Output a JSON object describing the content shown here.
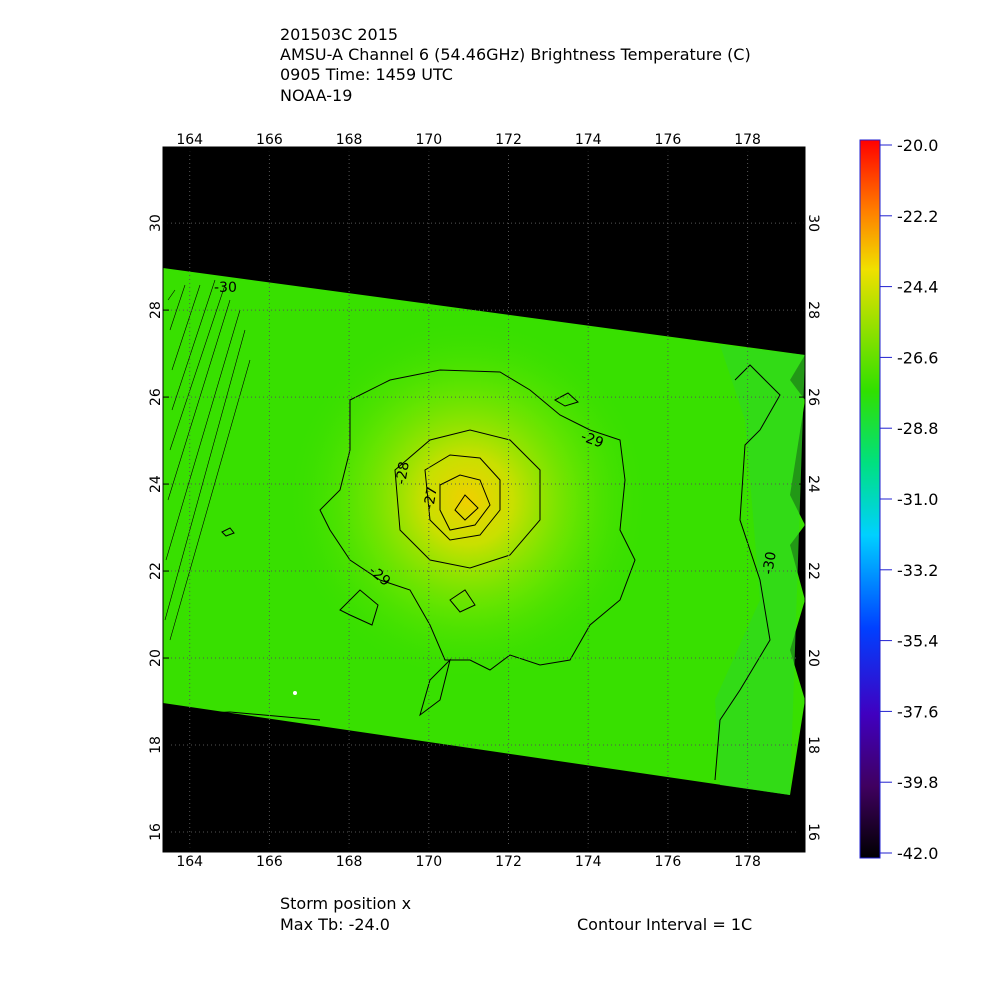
{
  "header": {
    "lines": [
      "201503C 2015",
      "AMSU-A Channel 6 (54.46GHz) Brightness Temperature (C)",
      "0905 Time: 1459 UTC",
      "NOAA-19"
    ]
  },
  "map": {
    "xlim": [
      163.33,
      179.44
    ],
    "ylim": [
      15.54,
      31.75
    ],
    "xticks": [
      164,
      166,
      168,
      170,
      172,
      174,
      176,
      178
    ],
    "yticks": [
      16,
      18,
      20,
      22,
      24,
      26,
      28,
      30
    ],
    "grid": true,
    "contour_labels": [
      "-30",
      "-29",
      "-28",
      "-27",
      "-29",
      "-30"
    ]
  },
  "colorbar": {
    "lim": [
      -42,
      -20
    ],
    "ticks": [
      {
        "value": -20,
        "label": "-20.0"
      },
      {
        "value": -22.2,
        "label": "-22.2"
      },
      {
        "value": -24.4,
        "label": "-24.4"
      },
      {
        "value": -26.6,
        "label": "-26.6"
      },
      {
        "value": -28.8,
        "label": "-28.8"
      },
      {
        "value": -31,
        "label": "-31.0"
      },
      {
        "value": -33.2,
        "label": "-33.2"
      },
      {
        "value": -35.4,
        "label": "-35.4"
      },
      {
        "value": -37.6,
        "label": "-37.6"
      },
      {
        "value": -39.8,
        "label": "-39.8"
      },
      {
        "value": -42,
        "label": "-42.0"
      }
    ],
    "tick_color": "#2020d0"
  },
  "footer": {
    "storm_position": "Storm position x",
    "max_tb": "Max Tb: -24.0",
    "contour_interval": "Contour Interval = 1C"
  }
}
